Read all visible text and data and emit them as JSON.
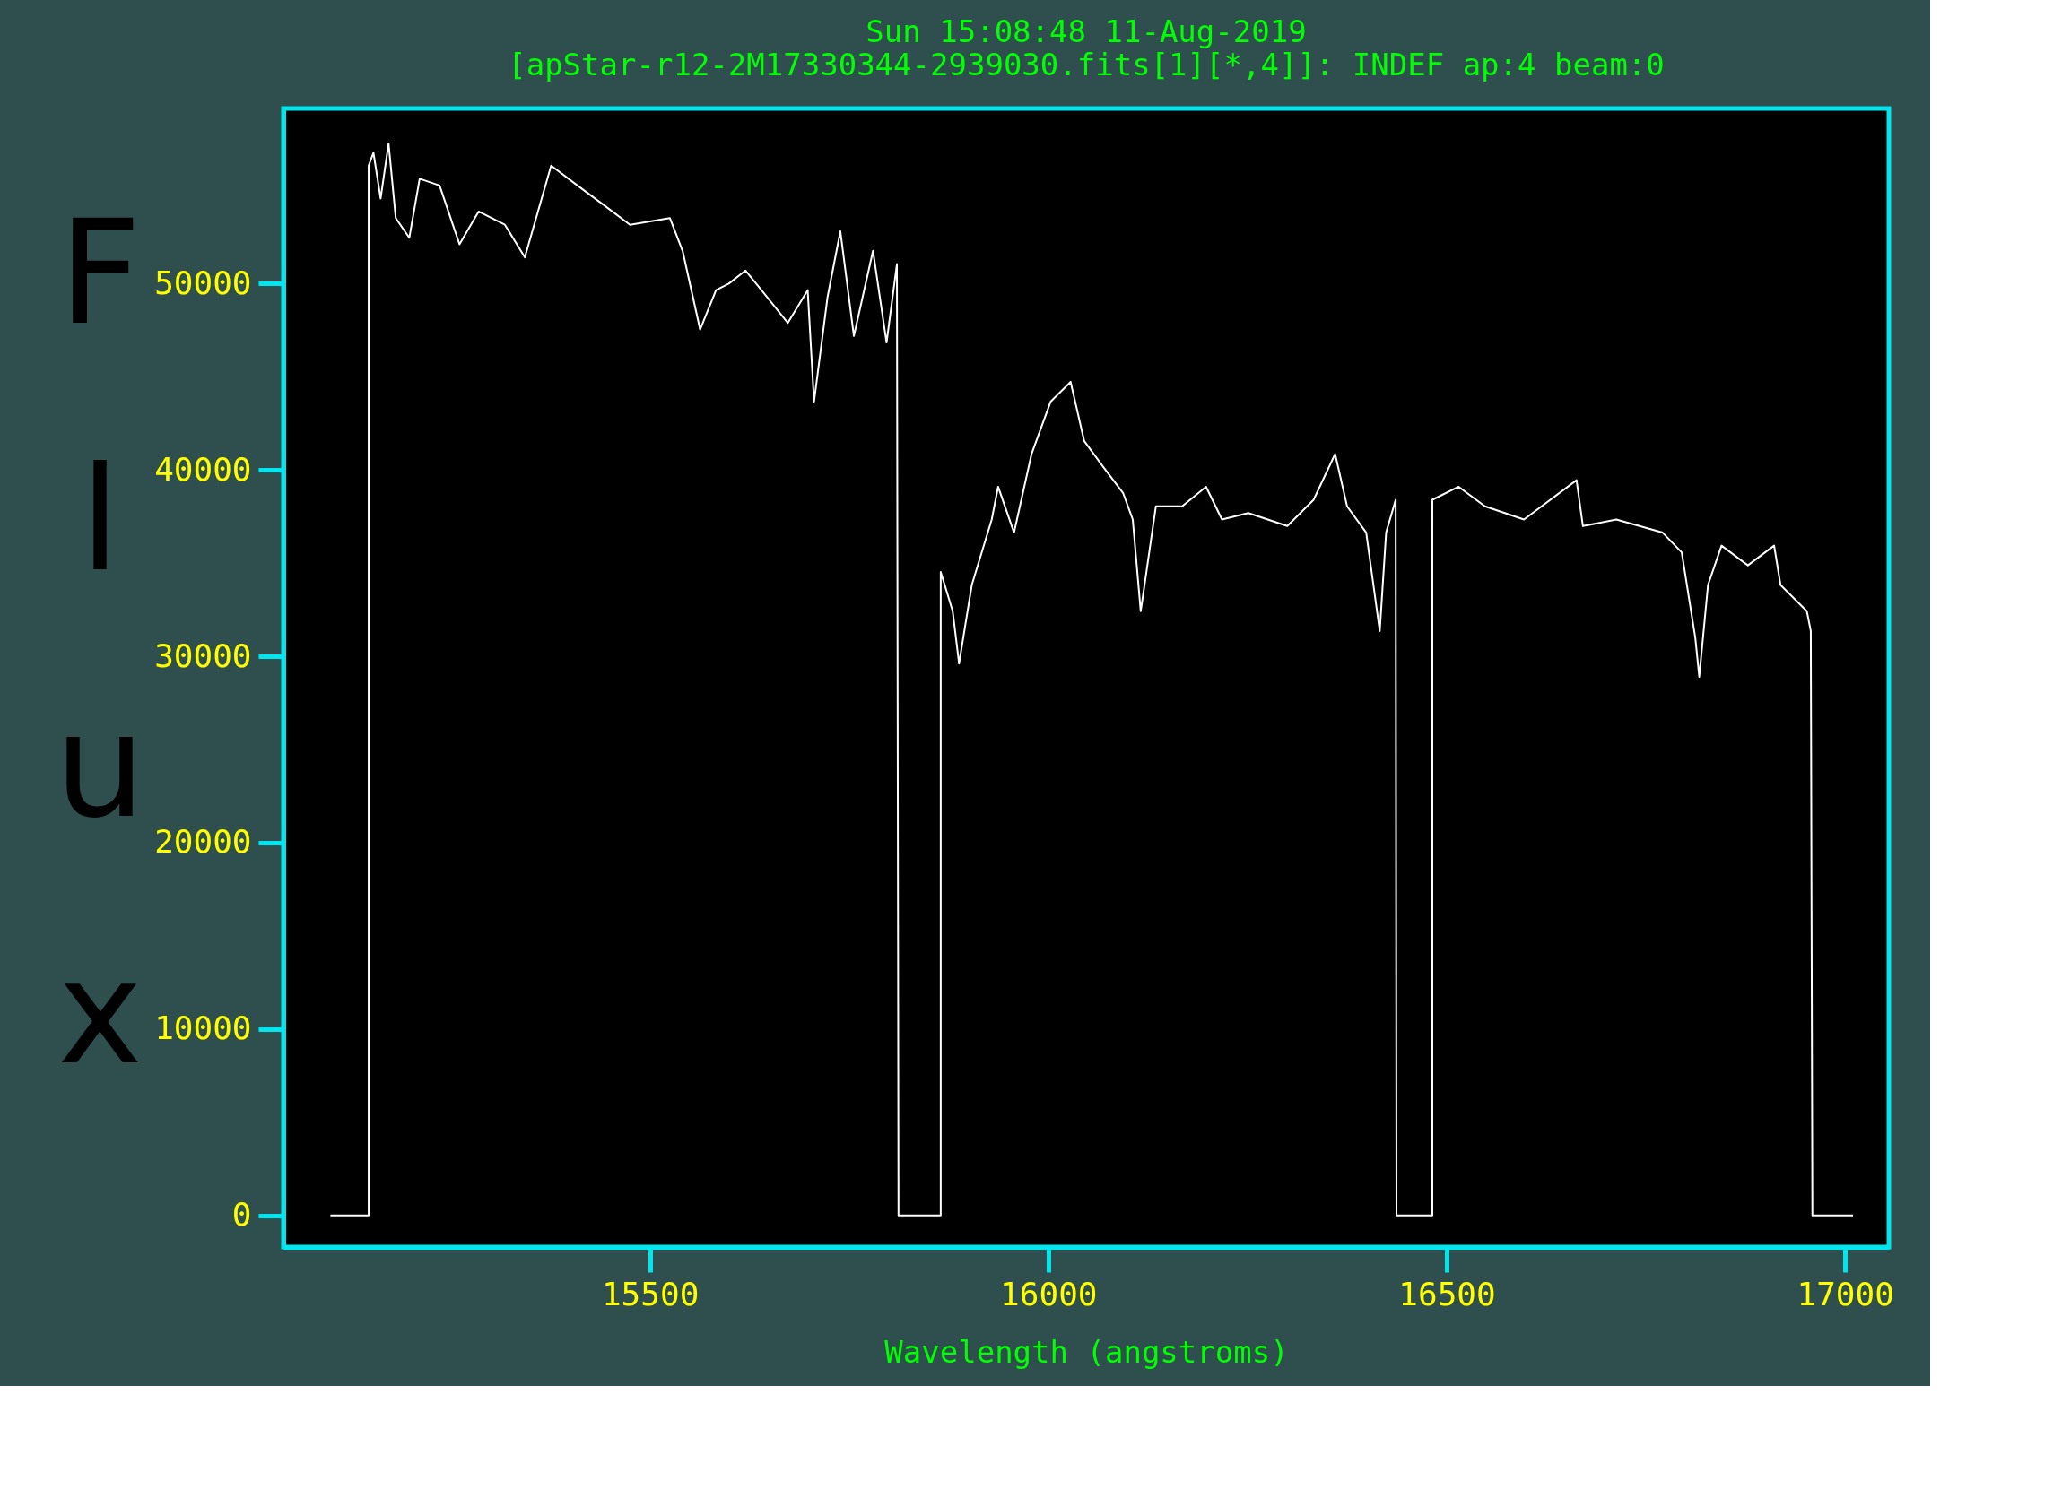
{
  "chart_data": {
    "type": "line",
    "title": "Sun 15:08:48 11-Aug-2019",
    "subtitle": "[apStar-r12-2M17330344-2939030.fits[1][*,4]]:  INDEF ap:4 beam:0",
    "xlabel": "Wavelength (angstroms)",
    "ylabel": "Flux",
    "xlim": [
      15040,
      17055
    ],
    "ylim": [
      -1700,
      59400
    ],
    "xticks": [
      15500,
      16000,
      16500,
      17000
    ],
    "yticks": [
      0,
      10000,
      20000,
      30000,
      40000,
      50000
    ],
    "grid": false,
    "marker": "none",
    "line_style": "solid",
    "series": [
      {
        "color": "#ffffff",
        "x": [
          15099,
          15147,
          15147,
          15153,
          15162,
          15172,
          15181,
          15198,
          15211,
          15236,
          15261,
          15285,
          15318,
          15343,
          15376,
          15409,
          15442,
          15475,
          15525,
          15541,
          15563,
          15583,
          15599,
          15620,
          15640,
          15673,
          15698,
          15706,
          15723,
          15739,
          15756,
          15780,
          15797,
          15810,
          15812,
          15865,
          15865,
          15880,
          15888,
          15904,
          15929,
          15937,
          15957,
          15979,
          16003,
          16028,
          16045,
          16069,
          16094,
          16106,
          16116,
          16135,
          16168,
          16198,
          16218,
          16251,
          16300,
          16333,
          16360,
          16375,
          16399,
          16416,
          16424,
          16436,
          16437,
          16482,
          16482,
          16515,
          16548,
          16597,
          16663,
          16671,
          16713,
          16771,
          16795,
          16812,
          16817,
          16828,
          16845,
          16878,
          16911,
          16919,
          16952,
          16957,
          16959,
          17010
        ],
        "values": [
          0,
          0,
          56330,
          57030,
          54570,
          57520,
          53520,
          52460,
          55630,
          55270,
          52110,
          53870,
          53160,
          51410,
          56330,
          55270,
          54220,
          53160,
          53520,
          51760,
          47540,
          49650,
          50000,
          50700,
          49650,
          47890,
          49650,
          43670,
          49300,
          52810,
          47190,
          51760,
          46840,
          51050,
          0,
          0,
          34530,
          32420,
          29610,
          33830,
          37340,
          39100,
          36640,
          40860,
          43670,
          44730,
          41560,
          40160,
          38750,
          37340,
          32420,
          38050,
          38050,
          39100,
          37340,
          37690,
          36990,
          38400,
          40860,
          38050,
          36640,
          31360,
          36640,
          38400,
          0,
          0,
          38400,
          39100,
          38050,
          37340,
          39450,
          36990,
          37340,
          36640,
          35580,
          31010,
          28900,
          33830,
          35940,
          34880,
          35940,
          33830,
          32420,
          31360,
          0,
          0
        ]
      }
    ]
  }
}
